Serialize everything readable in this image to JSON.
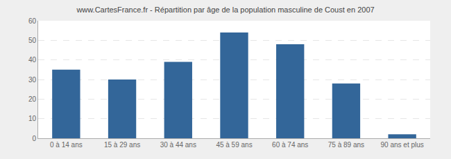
{
  "chart_data": {
    "type": "bar",
    "title": "www.CartesFrance.fr - Répartition par âge de la population masculine de Coust en 2007",
    "categories": [
      "0 à 14 ans",
      "15 à 29 ans",
      "30 à 44 ans",
      "45 à 59 ans",
      "60 à 74 ans",
      "75 à 89 ans",
      "90 ans et plus"
    ],
    "values": [
      35,
      30,
      39,
      54,
      48,
      28,
      2
    ],
    "color": "#336699",
    "ylim": [
      0,
      60
    ],
    "yticks": [
      0,
      10,
      20,
      30,
      40,
      50,
      60
    ],
    "grid": true
  }
}
